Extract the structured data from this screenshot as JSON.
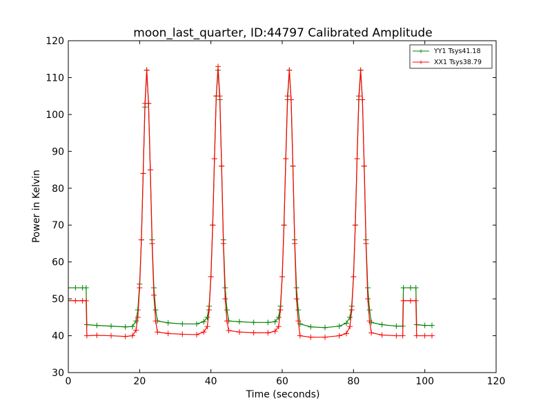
{
  "chart_data": {
    "type": "line",
    "title": "moon_last_quarter, ID:44797 Calibrated Amplitude",
    "xlabel": "Time (seconds)",
    "ylabel": "Power in Kelvin",
    "xlim": [
      0,
      120
    ],
    "ylim": [
      30,
      120
    ],
    "xticks": [
      0,
      20,
      40,
      60,
      80,
      100,
      120
    ],
    "yticks": [
      30,
      40,
      50,
      60,
      70,
      80,
      90,
      100,
      110,
      120
    ],
    "grid": false,
    "legend_position": "top-right",
    "series": [
      {
        "name": "YY1 Tsys41.18",
        "color": "#008000",
        "marker": "+",
        "x": [
          0,
          2,
          4,
          5,
          5.2,
          8,
          12,
          16,
          18,
          19,
          19.5,
          20,
          20.5,
          21,
          21.5,
          22,
          22.5,
          23,
          23.5,
          24,
          24.5,
          25,
          28,
          32,
          36,
          38,
          39,
          39.5,
          40,
          40.5,
          41,
          41.5,
          42,
          42.5,
          43,
          43.5,
          44,
          44.5,
          45,
          48,
          52,
          56,
          58,
          59,
          59.5,
          60,
          60.5,
          61,
          61.5,
          62,
          62.5,
          63,
          63.5,
          64,
          64.5,
          65,
          68,
          72,
          76,
          78,
          79,
          79.5,
          80,
          80.5,
          81,
          81.5,
          82,
          82.5,
          83,
          83.5,
          84,
          84.5,
          85,
          88,
          92,
          93.8,
          94,
          96,
          97.5,
          97.7,
          100,
          102
        ],
        "y": [
          53,
          53,
          53,
          53,
          43,
          42.8,
          42.6,
          42.4,
          42.5,
          44,
          47,
          54,
          66,
          84,
          102,
          112,
          103,
          85,
          66,
          53,
          47,
          44,
          43.5,
          43.2,
          43.2,
          43.8,
          45,
          48,
          56,
          70,
          88,
          105,
          112,
          104,
          86,
          66,
          53,
          47,
          44,
          43.8,
          43.6,
          43.6,
          43.8,
          45,
          48,
          56,
          70,
          88,
          104,
          112,
          104,
          86,
          66,
          53,
          47,
          43.2,
          42.4,
          42.2,
          42.6,
          43.4,
          45,
          48,
          56,
          70,
          88,
          104,
          112,
          104,
          86,
          66,
          53,
          47,
          43.6,
          43,
          42.6,
          42.6,
          53,
          53,
          53,
          43,
          42.8,
          42.8
        ]
      },
      {
        "name": "XX1 Tsys38.79",
        "color": "#ff0000",
        "marker": "+",
        "x": [
          0,
          2,
          4,
          5,
          5.2,
          8,
          12,
          16,
          18,
          19,
          19.5,
          20,
          20.5,
          21,
          21.5,
          22,
          22.5,
          23,
          23.5,
          24,
          24.5,
          25,
          28,
          32,
          36,
          38,
          39,
          39.5,
          40,
          40.5,
          41,
          41.5,
          42,
          42.5,
          43,
          43.5,
          44,
          44.5,
          45,
          48,
          52,
          56,
          58,
          59,
          59.5,
          60,
          60.5,
          61,
          61.5,
          62,
          62.5,
          63,
          63.5,
          64,
          64.5,
          65,
          68,
          72,
          76,
          78,
          79,
          79.5,
          80,
          80.5,
          81,
          81.5,
          82,
          82.5,
          83,
          83.5,
          84,
          84.5,
          85,
          88,
          92,
          93.8,
          94,
          96,
          97.5,
          97.7,
          100,
          102
        ],
        "y": [
          49.5,
          49.5,
          49.5,
          49.5,
          40,
          40.1,
          40,
          39.8,
          40,
          41.5,
          45,
          53,
          66,
          84,
          103,
          112,
          103,
          85,
          65,
          51,
          44,
          41,
          40.6,
          40.4,
          40.3,
          41,
          42.5,
          47,
          56,
          70,
          88,
          105,
          113,
          105,
          86,
          65,
          50,
          44,
          41.4,
          41,
          40.8,
          40.8,
          41.2,
          42.5,
          47,
          56,
          70,
          88,
          105,
          112,
          104,
          86,
          65,
          50,
          44,
          40,
          39.6,
          39.6,
          40,
          40.6,
          42.5,
          47,
          56,
          70,
          88,
          105,
          112,
          104,
          86,
          65,
          50,
          44,
          40.8,
          40.2,
          40,
          40,
          49.5,
          49.5,
          49.5,
          40,
          40,
          40
        ]
      }
    ]
  }
}
